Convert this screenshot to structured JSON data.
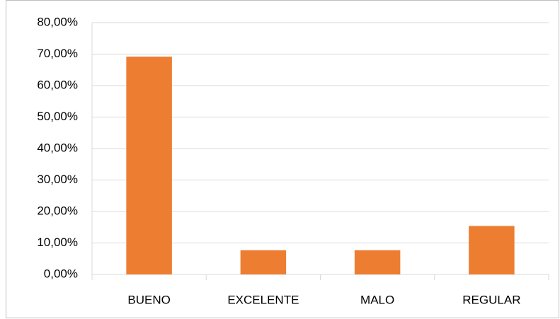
{
  "chart_data": {
    "type": "bar",
    "categories": [
      "BUENO",
      "EXCELENTE",
      "MALO",
      "REGULAR"
    ],
    "values": [
      69.2,
      7.7,
      7.7,
      15.4
    ],
    "color": "#ed7d31",
    "ylim": [
      0,
      80
    ],
    "yticks": [
      {
        "value": 0,
        "label": "0,00%"
      },
      {
        "value": 10,
        "label": "10,00%"
      },
      {
        "value": 20,
        "label": "20,00%"
      },
      {
        "value": 30,
        "label": "30,00%"
      },
      {
        "value": 40,
        "label": "40,00%"
      },
      {
        "value": 50,
        "label": "50,00%"
      },
      {
        "value": 60,
        "label": "60,00%"
      },
      {
        "value": 70,
        "label": "70,00%"
      },
      {
        "value": 80,
        "label": "80,00%"
      }
    ],
    "grid": true
  }
}
